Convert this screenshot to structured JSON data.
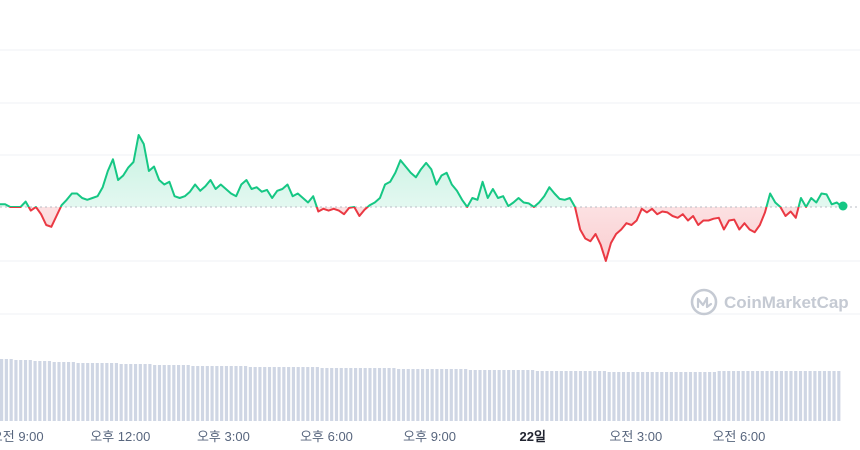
{
  "watermark": {
    "text": "CoinMarketCap",
    "icon": "coinmarketcap-logo-icon"
  },
  "colors": {
    "up": "#16c784",
    "down": "#ea3943",
    "grid": "#eff2f5",
    "volume": "#cfd6e4",
    "baseline": "#b8bcc4"
  },
  "chart_data": {
    "type": "line",
    "baseline": 0,
    "ylim": [
      -0.55,
      0.75
    ],
    "grid": true,
    "time_start": 0,
    "time_end": 24.5,
    "x_ticks": [
      {
        "t": 0.5,
        "label": "오전 9:00",
        "bold": false
      },
      {
        "t": 3.5,
        "label": "오후 12:00",
        "bold": false
      },
      {
        "t": 6.5,
        "label": "오후 3:00",
        "bold": false
      },
      {
        "t": 9.5,
        "label": "오후 6:00",
        "bold": false
      },
      {
        "t": 12.5,
        "label": "오후 9:00",
        "bold": false
      },
      {
        "t": 15.5,
        "label": "22일",
        "bold": true
      },
      {
        "t": 18.5,
        "label": "오전 3:00",
        "bold": false
      },
      {
        "t": 21.5,
        "label": "오전 6:00",
        "bold": false
      }
    ],
    "series": [
      {
        "values": [
          0.03,
          0.03,
          0.0,
          0.0,
          0.0,
          0.06,
          -0.04,
          0.0,
          -0.08,
          -0.2,
          -0.22,
          -0.1,
          0.02,
          0.08,
          0.15,
          0.15,
          0.1,
          0.08,
          0.1,
          0.12,
          0.22,
          0.4,
          0.53,
          0.3,
          0.35,
          0.44,
          0.5,
          0.8,
          0.7,
          0.4,
          0.45,
          0.3,
          0.25,
          0.28,
          0.12,
          0.1,
          0.12,
          0.17,
          0.25,
          0.18,
          0.23,
          0.3,
          0.2,
          0.25,
          0.2,
          0.15,
          0.12,
          0.25,
          0.3,
          0.2,
          0.22,
          0.17,
          0.19,
          0.1,
          0.18,
          0.2,
          0.25,
          0.12,
          0.15,
          0.1,
          0.05,
          0.12,
          -0.05,
          -0.02,
          -0.04,
          -0.02,
          -0.04,
          -0.08,
          -0.01,
          0.0,
          -0.1,
          -0.03,
          0.02,
          0.05,
          0.1,
          0.25,
          0.28,
          0.38,
          0.52,
          0.45,
          0.38,
          0.33,
          0.42,
          0.49,
          0.42,
          0.25,
          0.35,
          0.38,
          0.25,
          0.18,
          0.08,
          0.0,
          0.1,
          0.08,
          0.28,
          0.1,
          0.2,
          0.1,
          0.12,
          0.01,
          0.05,
          0.1,
          0.05,
          0.04,
          0.0,
          0.05,
          0.12,
          0.22,
          0.15,
          0.09,
          0.08,
          0.1,
          0.0,
          -0.25,
          -0.35,
          -0.38,
          -0.3,
          -0.42,
          -0.6,
          -0.4,
          -0.3,
          -0.25,
          -0.18,
          -0.2,
          -0.15,
          -0.02,
          -0.06,
          -0.02,
          -0.08,
          -0.05,
          -0.06,
          -0.1,
          -0.12,
          -0.08,
          -0.15,
          -0.1,
          -0.2,
          -0.15,
          -0.15,
          -0.13,
          -0.12,
          -0.25,
          -0.15,
          -0.14,
          -0.25,
          -0.18,
          -0.25,
          -0.28,
          -0.2,
          -0.06,
          0.15,
          0.05,
          0.0,
          -0.1,
          -0.05,
          -0.12,
          0.1,
          0.0,
          0.1,
          0.05,
          0.15,
          0.14,
          0.03,
          0.05,
          0.0
        ]
      }
    ],
    "volume": {
      "values": [
        0.62,
        0.62,
        0.62,
        0.61,
        0.61,
        0.61,
        0.61,
        0.6,
        0.6,
        0.6,
        0.6,
        0.59,
        0.59,
        0.59,
        0.59,
        0.59,
        0.58,
        0.58,
        0.58,
        0.58,
        0.58,
        0.58,
        0.58,
        0.58,
        0.58,
        0.57,
        0.57,
        0.57,
        0.57,
        0.57,
        0.57,
        0.57,
        0.56,
        0.56,
        0.56,
        0.56,
        0.56,
        0.56,
        0.56,
        0.56,
        0.55,
        0.55,
        0.55,
        0.55,
        0.55,
        0.55,
        0.55,
        0.55,
        0.55,
        0.55,
        0.55,
        0.55,
        0.54,
        0.54,
        0.54,
        0.54,
        0.54,
        0.54,
        0.54,
        0.54,
        0.54,
        0.54,
        0.54,
        0.54,
        0.54,
        0.54,
        0.54,
        0.53,
        0.53,
        0.53,
        0.53,
        0.53,
        0.53,
        0.53,
        0.53,
        0.53,
        0.53,
        0.53,
        0.53,
        0.53,
        0.53,
        0.53,
        0.53,
        0.52,
        0.52,
        0.52,
        0.52,
        0.52,
        0.52,
        0.52,
        0.52,
        0.52,
        0.52,
        0.52,
        0.52,
        0.52,
        0.52,
        0.52,
        0.51,
        0.51,
        0.51,
        0.51,
        0.51,
        0.51,
        0.51,
        0.51,
        0.51,
        0.51,
        0.51,
        0.51,
        0.51,
        0.51,
        0.5,
        0.5,
        0.5,
        0.5,
        0.5,
        0.5,
        0.5,
        0.5,
        0.5,
        0.5,
        0.5,
        0.5,
        0.5,
        0.5,
        0.5,
        0.49,
        0.49,
        0.49,
        0.49,
        0.49,
        0.49,
        0.49,
        0.49,
        0.49,
        0.49,
        0.49,
        0.49,
        0.49,
        0.49,
        0.49,
        0.49,
        0.49,
        0.49,
        0.49,
        0.49,
        0.49,
        0.49,
        0.49,
        0.5,
        0.5,
        0.5,
        0.5,
        0.5,
        0.5,
        0.5,
        0.5,
        0.5,
        0.5,
        0.5,
        0.5,
        0.5,
        0.5,
        0.5,
        0.5,
        0.5,
        0.5,
        0.5,
        0.5,
        0.5,
        0.5,
        0.5,
        0.5,
        0.5,
        0.5
      ]
    }
  }
}
